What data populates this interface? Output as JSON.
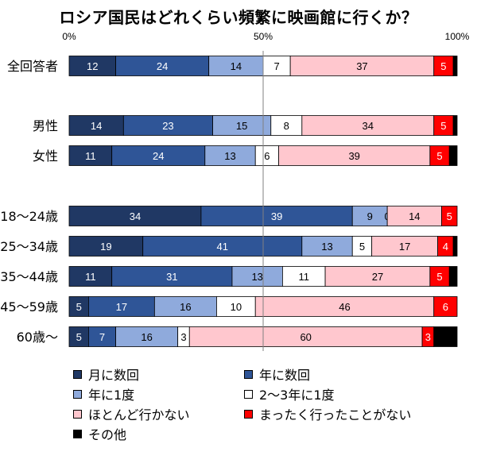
{
  "chart_data": {
    "type": "bar",
    "orientation": "horizontal",
    "stacked": true,
    "title": "ロシア国民はどれくらい頻繁に映画館に行くか？",
    "xlim": [
      0,
      100
    ],
    "x_ticks": [
      "0%",
      "50%",
      "100%"
    ],
    "categories": [
      "全回答者",
      "男性",
      "女性",
      "18～24歳",
      "25～34歳",
      "35～44歳",
      "45～59歳",
      "60歳～"
    ],
    "series": [
      {
        "name": "月に数回",
        "color": "#203864",
        "label_color": "#ffffff",
        "values": [
          12,
          14,
          11,
          34,
          19,
          11,
          5,
          5
        ]
      },
      {
        "name": "年に数回",
        "color": "#2f5597",
        "label_color": "#ffffff",
        "values": [
          24,
          23,
          24,
          39,
          41,
          31,
          17,
          7
        ]
      },
      {
        "name": "年に1度",
        "color": "#8faadc",
        "label_color": "#000000",
        "values": [
          14,
          15,
          13,
          9,
          13,
          13,
          16,
          16
        ]
      },
      {
        "name": "2～3年に1度",
        "color": "#ffffff",
        "label_color": "#000000",
        "values": [
          7,
          8,
          6,
          0,
          5,
          11,
          10,
          3
        ]
      },
      {
        "name": "ほとんど行かない",
        "color": "#ffc7ce",
        "label_color": "#000000",
        "values": [
          37,
          34,
          39,
          14,
          17,
          27,
          46,
          60
        ]
      },
      {
        "name": "まったく行ったことがない",
        "color": "#ff0000",
        "label_color": "#ffffff",
        "values": [
          5,
          5,
          5,
          5,
          4,
          5,
          6,
          3
        ]
      },
      {
        "name": "その他",
        "color": "#000000",
        "label_color": "#ffffff",
        "values": [
          1,
          1,
          2,
          0,
          1,
          2,
          0,
          6
        ]
      }
    ],
    "legend": {
      "position": "bottom",
      "columns": 2
    },
    "grid": false
  }
}
